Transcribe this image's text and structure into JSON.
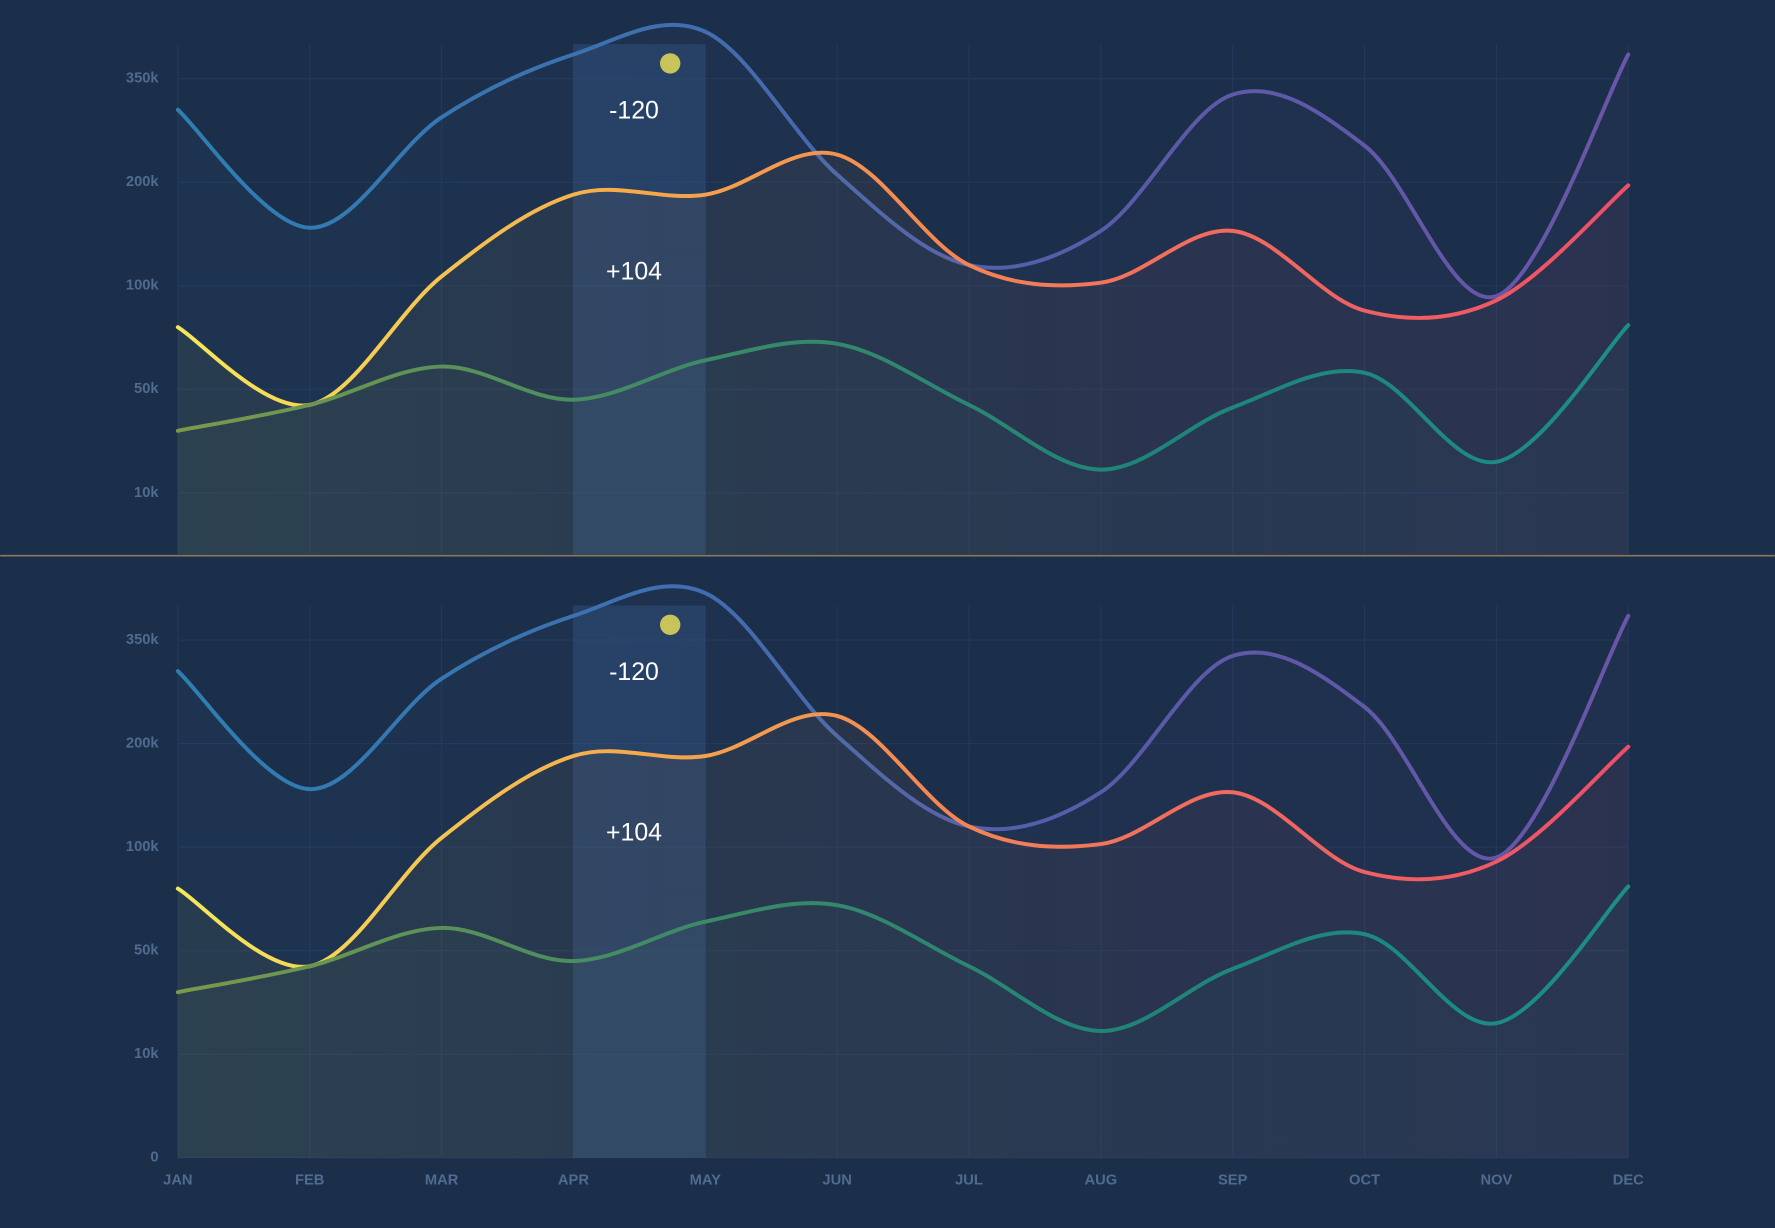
{
  "chart_data": [
    {
      "type": "line",
      "ylim": [
        0,
        400000
      ],
      "yticks": [
        {
          "value": 10000,
          "label": "10k"
        },
        {
          "value": 50000,
          "label": "50k"
        },
        {
          "value": 100000,
          "label": "100k"
        },
        {
          "value": 200000,
          "label": "200k"
        },
        {
          "value": 350000,
          "label": "350k"
        }
      ],
      "grid": true,
      "series": [
        {
          "colors": [
            "#2d7fb2",
            "#3f6fb0",
            "#5a5aa8",
            "#6b55a8"
          ],
          "values": [
            305000,
            156000,
            294000,
            385000,
            418000,
            211000,
            120000,
            153000,
            327000,
            253000,
            95000,
            385000
          ]
        },
        {
          "colors": [
            "#f6e85a",
            "#f5a64a",
            "#f2705c",
            "#ee4f68"
          ],
          "values": [
            80000,
            44000,
            109000,
            188000,
            188000,
            240000,
            120000,
            103000,
            153000,
            88000,
            93000,
            197000
          ]
        },
        {
          "colors": [
            "#7a9a4a",
            "#3f8a66",
            "#1e8478",
            "#1b8e88"
          ],
          "values": [
            34000,
            44000,
            61000,
            46000,
            64000,
            72000,
            44000,
            19000,
            43000,
            58000,
            22000,
            81000
          ]
        }
      ],
      "annotations": [
        "-120",
        "+104"
      ]
    },
    {
      "type": "line",
      "ylim": [
        0,
        400000
      ],
      "categories": [
        "JAN",
        "FEB",
        "MAR",
        "APR",
        "MAY",
        "JUN",
        "JUL",
        "AUG",
        "SEP",
        "OCT",
        "NOV",
        "DEC"
      ],
      "yticks": [
        0,
        {
          "value": 10000,
          "label": "10k"
        },
        {
          "value": 50000,
          "label": "50k"
        },
        {
          "value": 100000,
          "label": "100k"
        },
        {
          "value": 200000,
          "label": "200k"
        },
        {
          "value": 350000,
          "label": "350k"
        }
      ],
      "grid": true,
      "series": [
        {
          "colors": [
            "#2d7fb2",
            "#3f6fb0",
            "#5a5aa8",
            "#6b55a8"
          ],
          "values": [
            305000,
            156000,
            294000,
            385000,
            418000,
            211000,
            120000,
            153000,
            327000,
            253000,
            95000,
            385000
          ]
        },
        {
          "colors": [
            "#f6e85a",
            "#f5a64a",
            "#f2705c",
            "#ee4f68"
          ],
          "values": [
            80000,
            44000,
            109000,
            188000,
            188000,
            240000,
            120000,
            103000,
            153000,
            88000,
            93000,
            197000
          ]
        },
        {
          "colors": [
            "#7a9a4a",
            "#3f8a66",
            "#1e8478",
            "#1b8e88"
          ],
          "values": [
            34000,
            44000,
            61000,
            46000,
            64000,
            72000,
            44000,
            19000,
            43000,
            58000,
            22000,
            81000
          ]
        }
      ],
      "annotations": [
        "-120",
        "+104"
      ]
    }
  ]
}
